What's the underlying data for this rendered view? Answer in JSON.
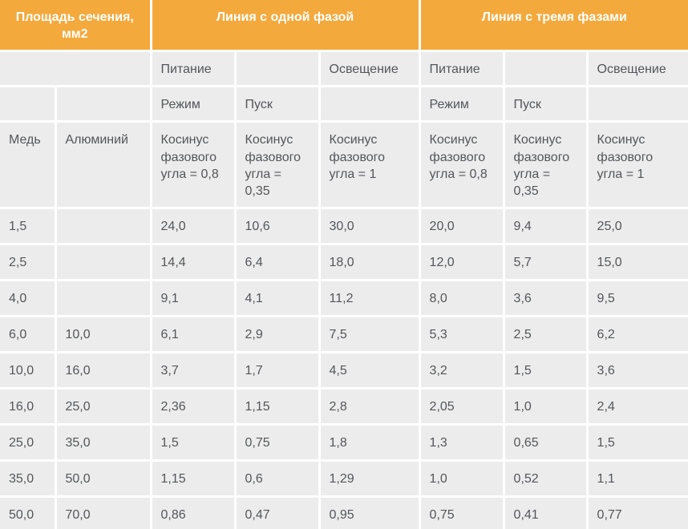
{
  "colors": {
    "header_bg": "#f4a93c",
    "header_text": "#ffffff",
    "cell_bg": "#ececec",
    "cell_text": "#54565a",
    "divider": "#ffffff"
  },
  "chart_data": {
    "type": "table",
    "title": "",
    "column_groups": [
      {
        "label": "Площадь сечения, мм2",
        "span": 2
      },
      {
        "label": "Линия с одной фазой",
        "span": 3
      },
      {
        "label": "Линия с тремя фазами",
        "span": 3
      }
    ],
    "subheaders": {
      "supply_row": [
        "Питание",
        "",
        "Освещение",
        "Питание",
        "",
        "Освещение"
      ],
      "mode_row": [
        "Режим",
        "Пуск",
        "",
        "Режим",
        "Пуск",
        ""
      ],
      "cosine_row": [
        "Медь",
        "Алюминий",
        "Косинус фазового угла = 0,8",
        "Косинус фазового угла = 0,35",
        "Косинус фазового угла = 1",
        "Косинус фазового угла = 0,8",
        "Косинус фазового угла = 0,35",
        "Косинус фазового угла = 1"
      ]
    },
    "rows": [
      [
        "1,5",
        "",
        "24,0",
        "10,6",
        "30,0",
        "20,0",
        "9,4",
        "25,0"
      ],
      [
        "2,5",
        "",
        "14,4",
        "6,4",
        "18,0",
        "12,0",
        "5,7",
        "15,0"
      ],
      [
        "4,0",
        "",
        "9,1",
        "4,1",
        "11,2",
        "8,0",
        "3,6",
        "9,5"
      ],
      [
        "6,0",
        "10,0",
        "6,1",
        "2,9",
        "7,5",
        "5,3",
        "2,5",
        "6,2"
      ],
      [
        "10,0",
        "16,0",
        "3,7",
        "1,7",
        "4,5",
        "3,2",
        "1,5",
        "3,6"
      ],
      [
        "16,0",
        "25,0",
        "2,36",
        "1,15",
        "2,8",
        "2,05",
        "1,0",
        "2,4"
      ],
      [
        "25,0",
        "35,0",
        "1,5",
        "0,75",
        "1,8",
        "1,3",
        "0,65",
        "1,5"
      ],
      [
        "35,0",
        "50,0",
        "1,15",
        "0,6",
        "1,29",
        "1,0",
        "0,52",
        "1,1"
      ],
      [
        "50,0",
        "70,0",
        "0,86",
        "0,47",
        "0,95",
        "0,75",
        "0,41",
        "0,77"
      ]
    ]
  }
}
